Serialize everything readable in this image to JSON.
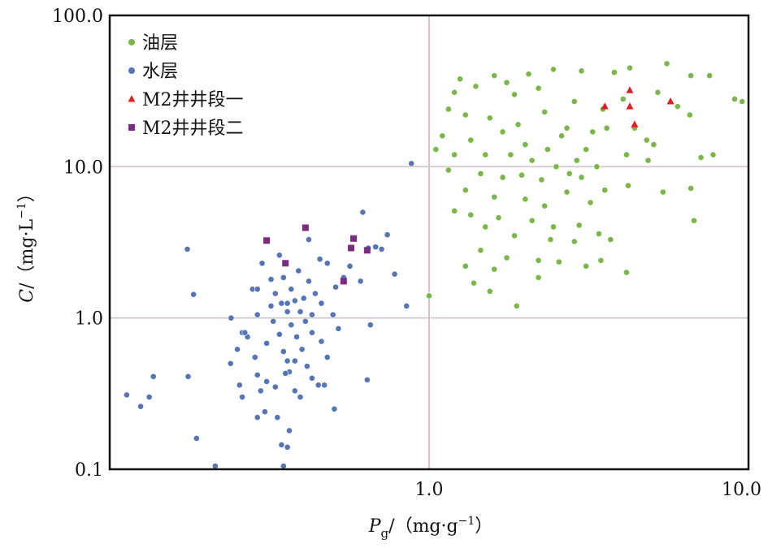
{
  "chart_data": {
    "type": "scatter",
    "x_scale": "log",
    "y_scale": "log",
    "xlim": [
      0.1,
      10.0
    ],
    "ylim": [
      0.1,
      100.0
    ],
    "x_ticks": [
      {
        "value": 1.0,
        "label": "1.0"
      },
      {
        "value": 10.0,
        "label": "10.0"
      }
    ],
    "y_ticks": [
      {
        "value": 0.1,
        "label": "0.1"
      },
      {
        "value": 1.0,
        "label": "1.0"
      },
      {
        "value": 10.0,
        "label": "10.0"
      },
      {
        "value": 100.0,
        "label": "100.0"
      }
    ],
    "xlabel": {
      "var": "P",
      "sub": "g",
      "unit": "/（mg·g",
      "exp": "−1",
      "close": "）"
    },
    "ylabel": {
      "var": "C",
      "unit": "/（mg·L",
      "exp": "−1",
      "close": "）"
    },
    "grid": {
      "lines": [
        1.0,
        10.0
      ],
      "color": "#d6c3c8"
    },
    "legend_position": "top-left",
    "series": [
      {
        "name": "油层",
        "marker": "circle",
        "color": "#7ab648",
        "points": [
          [
            1.25,
            38
          ],
          [
            1.6,
            40
          ],
          [
            1.75,
            36
          ],
          [
            2.05,
            41
          ],
          [
            2.45,
            44
          ],
          [
            3.0,
            43
          ],
          [
            3.8,
            42
          ],
          [
            4.25,
            45
          ],
          [
            5.55,
            48
          ],
          [
            6.6,
            40
          ],
          [
            7.55,
            40
          ],
          [
            9.05,
            28
          ],
          [
            9.55,
            27
          ],
          [
            1.2,
            31
          ],
          [
            1.4,
            34
          ],
          [
            1.85,
            30
          ],
          [
            2.2,
            33
          ],
          [
            2.85,
            27
          ],
          [
            4.05,
            28
          ],
          [
            5.2,
            31
          ],
          [
            6.0,
            25
          ],
          [
            6.55,
            22
          ],
          [
            1.15,
            24
          ],
          [
            1.3,
            22
          ],
          [
            1.55,
            21
          ],
          [
            1.9,
            19
          ],
          [
            2.3,
            23
          ],
          [
            2.7,
            18
          ],
          [
            3.25,
            17
          ],
          [
            3.5,
            24
          ],
          [
            4.4,
            18
          ],
          [
            4.8,
            15
          ],
          [
            5.05,
            14
          ],
          [
            1.1,
            16
          ],
          [
            1.35,
            15
          ],
          [
            1.7,
            17
          ],
          [
            2.0,
            14
          ],
          [
            2.35,
            13
          ],
          [
            2.6,
            16
          ],
          [
            3.1,
            13
          ],
          [
            3.6,
            18
          ],
          [
            4.15,
            12
          ],
          [
            4.85,
            11
          ],
          [
            1.05,
            13
          ],
          [
            1.2,
            12
          ],
          [
            1.5,
            12
          ],
          [
            1.8,
            12
          ],
          [
            2.1,
            11
          ],
          [
            2.5,
            10
          ],
          [
            2.9,
            11
          ],
          [
            3.35,
            10
          ],
          [
            7.1,
            11.5
          ],
          [
            7.75,
            12
          ],
          [
            1.15,
            9.5
          ],
          [
            1.45,
            9.0
          ],
          [
            1.7,
            8.5
          ],
          [
            1.95,
            8.8
          ],
          [
            2.25,
            8.2
          ],
          [
            2.75,
            9.0
          ],
          [
            3.0,
            8.5
          ],
          [
            3.55,
            7.0
          ],
          [
            4.2,
            7.5
          ],
          [
            5.4,
            6.8
          ],
          [
            6.6,
            7.2
          ],
          [
            1.3,
            7.0
          ],
          [
            1.6,
            6.3
          ],
          [
            2.0,
            6.1
          ],
          [
            2.3,
            5.5
          ],
          [
            2.7,
            6.8
          ],
          [
            3.2,
            5.8
          ],
          [
            6.75,
            4.4
          ],
          [
            1.2,
            5.1
          ],
          [
            1.35,
            4.8
          ],
          [
            1.65,
            4.6
          ],
          [
            2.1,
            4.4
          ],
          [
            2.45,
            4.0
          ],
          [
            2.95,
            4.1
          ],
          [
            3.4,
            3.6
          ],
          [
            1.5,
            4.0
          ],
          [
            1.85,
            3.5
          ],
          [
            2.4,
            3.3
          ],
          [
            2.85,
            3.2
          ],
          [
            3.7,
            3.3
          ],
          [
            1.45,
            2.8
          ],
          [
            1.75,
            2.5
          ],
          [
            2.2,
            2.4
          ],
          [
            2.55,
            2.35
          ],
          [
            3.1,
            2.2
          ],
          [
            3.45,
            2.4
          ],
          [
            1.3,
            2.2
          ],
          [
            1.6,
            2.1
          ],
          [
            1.38,
            1.7
          ],
          [
            1.55,
            1.5
          ],
          [
            2.2,
            1.85
          ],
          [
            4.15,
            2.0
          ],
          [
            1.88,
            1.2
          ],
          [
            1.0,
            1.4
          ]
        ]
      },
      {
        "name": "水层",
        "marker": "circle",
        "color": "#5575b5",
        "points": [
          [
            0.113,
            0.31
          ],
          [
            0.125,
            0.26
          ],
          [
            0.133,
            0.3
          ],
          [
            0.137,
            0.41
          ],
          [
            0.176,
            0.41
          ],
          [
            0.183,
            1.43
          ],
          [
            0.187,
            0.16
          ],
          [
            0.175,
            2.85
          ],
          [
            0.214,
            0.105
          ],
          [
            0.239,
            0.5
          ],
          [
            0.255,
            0.36
          ],
          [
            0.26,
            0.3
          ],
          [
            0.24,
            1.0
          ],
          [
            0.251,
            0.62
          ],
          [
            0.27,
            0.75
          ],
          [
            0.285,
            0.55
          ],
          [
            0.29,
            0.42
          ],
          [
            0.297,
            0.33
          ],
          [
            0.306,
            0.24
          ],
          [
            0.26,
            0.8
          ],
          [
            0.28,
            1.55
          ],
          [
            0.29,
            1.05
          ],
          [
            0.31,
            0.68
          ],
          [
            0.33,
            0.35
          ],
          [
            0.335,
            0.22
          ],
          [
            0.345,
            0.145
          ],
          [
            0.35,
            0.105
          ],
          [
            0.32,
            1.2
          ],
          [
            0.325,
            0.95
          ],
          [
            0.34,
            0.78
          ],
          [
            0.35,
            0.6
          ],
          [
            0.36,
            0.52
          ],
          [
            0.365,
            0.44
          ],
          [
            0.38,
            0.33
          ],
          [
            0.395,
            0.3
          ],
          [
            0.3,
            2.3
          ],
          [
            0.32,
            1.8
          ],
          [
            0.33,
            1.45
          ],
          [
            0.345,
            1.25
          ],
          [
            0.36,
            1.1
          ],
          [
            0.37,
            0.9
          ],
          [
            0.385,
            0.75
          ],
          [
            0.4,
            0.62
          ],
          [
            0.415,
            0.48
          ],
          [
            0.43,
            0.4
          ],
          [
            0.45,
            0.36
          ],
          [
            0.34,
            2.6
          ],
          [
            0.35,
            1.85
          ],
          [
            0.37,
            1.55
          ],
          [
            0.38,
            1.3
          ],
          [
            0.395,
            1.1
          ],
          [
            0.41,
            0.95
          ],
          [
            0.43,
            0.8
          ],
          [
            0.46,
            0.7
          ],
          [
            0.48,
            0.55
          ],
          [
            0.39,
            2.05
          ],
          [
            0.42,
            1.75
          ],
          [
            0.44,
            1.45
          ],
          [
            0.46,
            1.25
          ],
          [
            0.5,
            1.05
          ],
          [
            0.52,
            0.85
          ],
          [
            0.455,
            2.45
          ],
          [
            0.48,
            2.3
          ],
          [
            0.51,
            1.6
          ],
          [
            0.54,
            1.85
          ],
          [
            0.565,
            2.2
          ],
          [
            0.61,
            1.75
          ],
          [
            0.62,
            5.0
          ],
          [
            0.645,
            2.9
          ],
          [
            0.68,
            2.95
          ],
          [
            0.71,
            2.85
          ],
          [
            0.74,
            3.55
          ],
          [
            0.78,
            1.95
          ],
          [
            0.85,
            1.2
          ],
          [
            0.655,
            0.9
          ],
          [
            0.64,
            0.39
          ],
          [
            0.42,
            3.3
          ],
          [
            0.47,
            0.36
          ],
          [
            0.505,
            0.25
          ],
          [
            0.355,
            0.43
          ],
          [
            0.365,
            0.18
          ],
          [
            0.31,
            0.38
          ],
          [
            0.29,
            1.55
          ],
          [
            0.265,
            0.8
          ],
          [
            0.36,
            1.25
          ],
          [
            0.405,
            1.35
          ],
          [
            0.43,
            1.05
          ],
          [
            0.38,
            0.52
          ],
          [
            0.29,
            0.22
          ],
          [
            0.36,
            0.14
          ],
          [
            0.88,
            10.5
          ]
        ]
      },
      {
        "name": "M2井井段一",
        "marker": "triangle",
        "color": "#e02020",
        "points": [
          [
            3.55,
            25
          ],
          [
            4.25,
            32
          ],
          [
            4.25,
            25
          ],
          [
            4.4,
            19
          ],
          [
            5.7,
            27
          ]
        ]
      },
      {
        "name": "M2井井段二",
        "marker": "square",
        "color": "#7b2b80",
        "points": [
          [
            0.31,
            3.25
          ],
          [
            0.355,
            2.3
          ],
          [
            0.41,
            3.95
          ],
          [
            0.58,
            3.35
          ],
          [
            0.57,
            2.9
          ],
          [
            0.54,
            1.75
          ],
          [
            0.64,
            2.8
          ]
        ]
      }
    ]
  }
}
